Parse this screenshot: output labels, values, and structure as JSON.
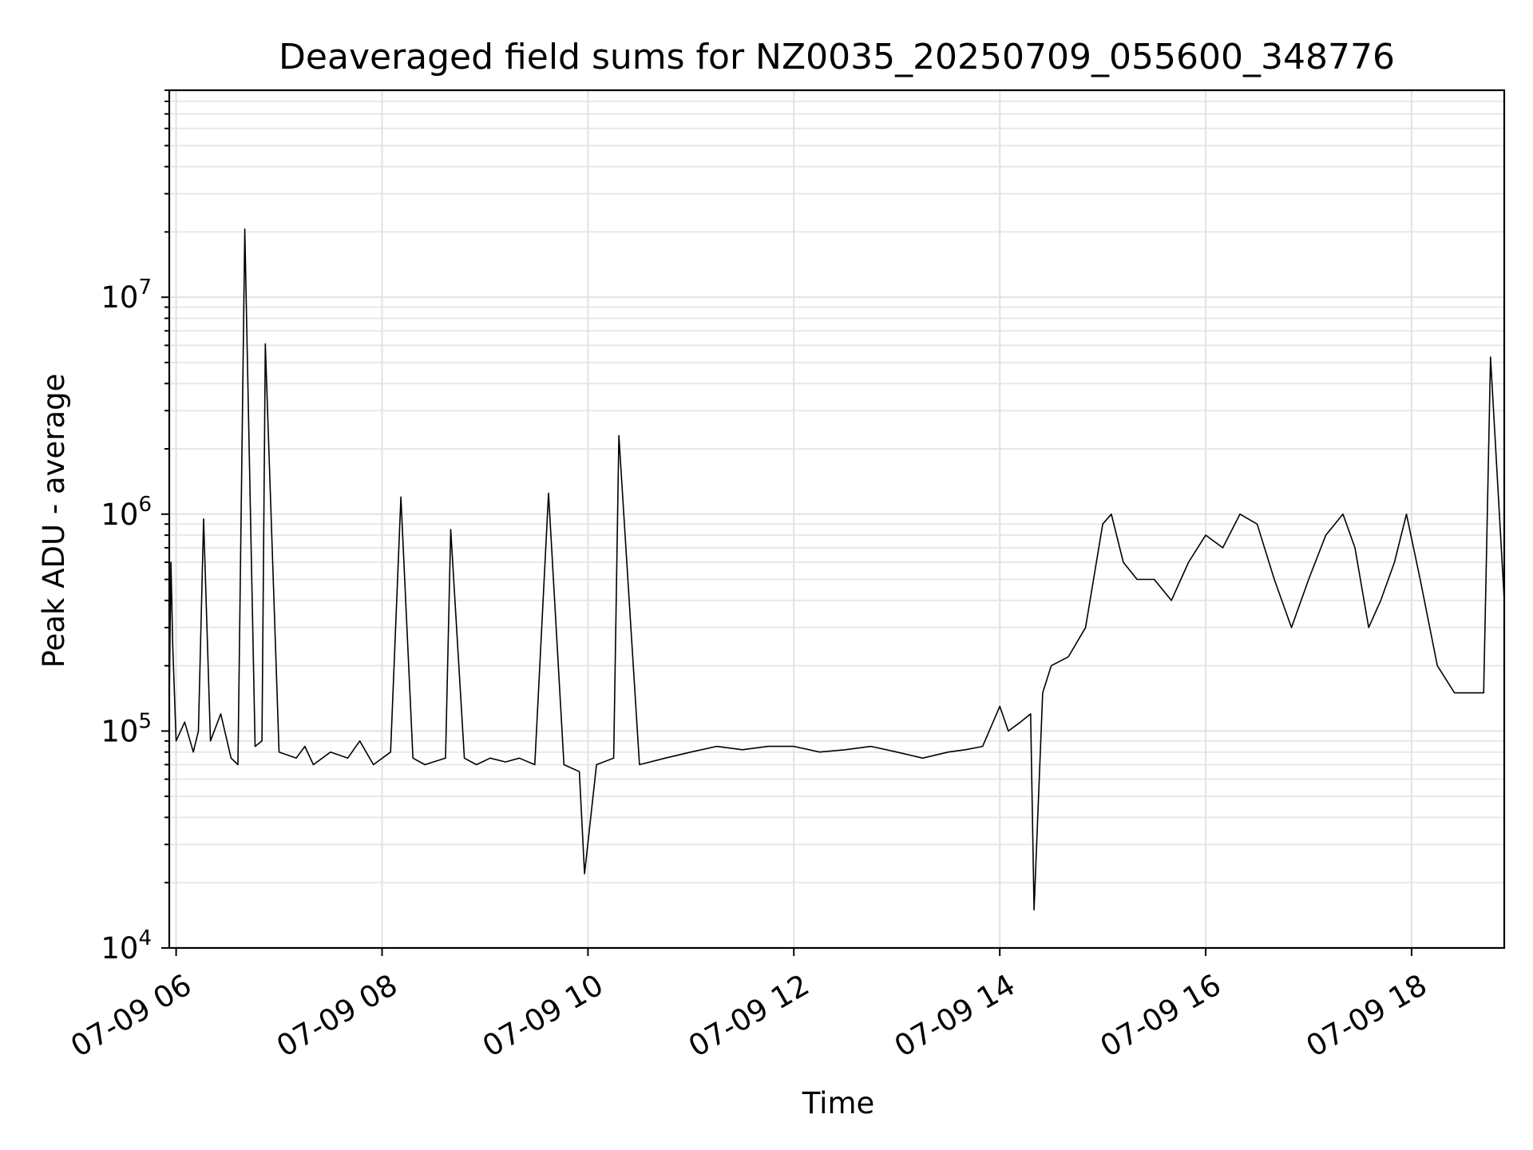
{
  "chart_data": {
    "type": "line",
    "title": "Deaveraged field sums for NZ0035_20250709_055600_348776",
    "xlabel": "Time",
    "ylabel": "Peak ADU - average",
    "y_scale": "log",
    "ylim": [
      10000,
      90000000
    ],
    "xlim": [
      "2025-07-09T05:56:00",
      "2025-07-09T18:54:00"
    ],
    "x_ticks": [
      {
        "value": "2025-07-09T06:00:00",
        "label": "07-09 06"
      },
      {
        "value": "2025-07-09T08:00:00",
        "label": "07-09 08"
      },
      {
        "value": "2025-07-09T10:00:00",
        "label": "07-09 10"
      },
      {
        "value": "2025-07-09T12:00:00",
        "label": "07-09 12"
      },
      {
        "value": "2025-07-09T14:00:00",
        "label": "07-09 14"
      },
      {
        "value": "2025-07-09T16:00:00",
        "label": "07-09 16"
      },
      {
        "value": "2025-07-09T18:00:00",
        "label": "07-09 18"
      }
    ],
    "y_ticks": [
      {
        "value": 10000,
        "base": "10",
        "exp": "4"
      },
      {
        "value": 100000,
        "base": "10",
        "exp": "5"
      },
      {
        "value": 1000000,
        "base": "10",
        "exp": "6"
      },
      {
        "value": 10000000,
        "base": "10",
        "exp": "7"
      }
    ],
    "grid": true,
    "line_color": "#000000",
    "series": [
      {
        "x": [
          "2025-07-09T05:56:00",
          "2025-07-09T05:57:00",
          "2025-07-09T05:58:00",
          "2025-07-09T06:00:00",
          "2025-07-09T06:05:00",
          "2025-07-09T06:10:00",
          "2025-07-09T06:13:00",
          "2025-07-09T06:16:00",
          "2025-07-09T06:20:00",
          "2025-07-09T06:26:00",
          "2025-07-09T06:32:00",
          "2025-07-09T06:36:00",
          "2025-07-09T06:40:00",
          "2025-07-09T06:46:00",
          "2025-07-09T06:50:00",
          "2025-07-09T06:52:00",
          "2025-07-09T07:00:00",
          "2025-07-09T07:10:00",
          "2025-07-09T07:15:00",
          "2025-07-09T07:20:00",
          "2025-07-09T07:30:00",
          "2025-07-09T07:40:00",
          "2025-07-09T07:47:00",
          "2025-07-09T07:55:00",
          "2025-07-09T08:05:00",
          "2025-07-09T08:11:00",
          "2025-07-09T08:18:00",
          "2025-07-09T08:25:00",
          "2025-07-09T08:37:00",
          "2025-07-09T08:40:00",
          "2025-07-09T08:48:00",
          "2025-07-09T08:55:00",
          "2025-07-09T09:03:00",
          "2025-07-09T09:12:00",
          "2025-07-09T09:20:00",
          "2025-07-09T09:29:00",
          "2025-07-09T09:37:00",
          "2025-07-09T09:46:00",
          "2025-07-09T09:55:00",
          "2025-07-09T09:58:00",
          "2025-07-09T10:05:00",
          "2025-07-09T10:15:00",
          "2025-07-09T10:18:00",
          "2025-07-09T10:30:00",
          "2025-07-09T10:45:00",
          "2025-07-09T11:00:00",
          "2025-07-09T11:15:00",
          "2025-07-09T11:30:00",
          "2025-07-09T11:45:00",
          "2025-07-09T12:00:00",
          "2025-07-09T12:15:00",
          "2025-07-09T12:30:00",
          "2025-07-09T12:45:00",
          "2025-07-09T13:00:00",
          "2025-07-09T13:15:00",
          "2025-07-09T13:30:00",
          "2025-07-09T13:40:00",
          "2025-07-09T13:50:00",
          "2025-07-09T14:00:00",
          "2025-07-09T14:05:00",
          "2025-07-09T14:12:00",
          "2025-07-09T14:18:00",
          "2025-07-09T14:20:00",
          "2025-07-09T14:25:00",
          "2025-07-09T14:30:00",
          "2025-07-09T14:40:00",
          "2025-07-09T14:50:00",
          "2025-07-09T15:00:00",
          "2025-07-09T15:05:00",
          "2025-07-09T15:12:00",
          "2025-07-09T15:20:00",
          "2025-07-09T15:30:00",
          "2025-07-09T15:40:00",
          "2025-07-09T15:50:00",
          "2025-07-09T16:00:00",
          "2025-07-09T16:10:00",
          "2025-07-09T16:20:00",
          "2025-07-09T16:30:00",
          "2025-07-09T16:40:00",
          "2025-07-09T16:50:00",
          "2025-07-09T17:00:00",
          "2025-07-09T17:10:00",
          "2025-07-09T17:20:00",
          "2025-07-09T17:27:00",
          "2025-07-09T17:35:00",
          "2025-07-09T17:42:00",
          "2025-07-09T17:50:00",
          "2025-07-09T17:57:00",
          "2025-07-09T18:05:00",
          "2025-07-09T18:15:00",
          "2025-07-09T18:25:00",
          "2025-07-09T18:35:00",
          "2025-07-09T18:42:00",
          "2025-07-09T18:46:00",
          "2025-07-09T18:54:00"
        ],
        "y": [
          140000,
          600000,
          250000,
          90000,
          110000,
          80000,
          100000,
          950000,
          90000,
          120000,
          75000,
          70000,
          20600000,
          85000,
          90000,
          6100000,
          80000,
          75000,
          85000,
          70000,
          80000,
          75000,
          90000,
          70000,
          80000,
          1200000,
          75000,
          70000,
          75000,
          850000,
          75000,
          70000,
          75000,
          72000,
          75000,
          70000,
          1250000,
          70000,
          65000,
          22000,
          70000,
          75000,
          2300000,
          70000,
          75000,
          80000,
          85000,
          82000,
          85000,
          85000,
          80000,
          82000,
          85000,
          80000,
          75000,
          80000,
          82000,
          85000,
          130000,
          100000,
          110000,
          120000,
          15000,
          150000,
          200000,
          220000,
          300000,
          900000,
          1000000,
          600000,
          500000,
          500000,
          400000,
          600000,
          800000,
          700000,
          1000000,
          900000,
          500000,
          300000,
          500000,
          800000,
          1000000,
          700000,
          300000,
          400000,
          600000,
          1000000,
          500000,
          200000,
          150000,
          150000,
          150000,
          5300000,
          400000
        ]
      }
    ]
  }
}
